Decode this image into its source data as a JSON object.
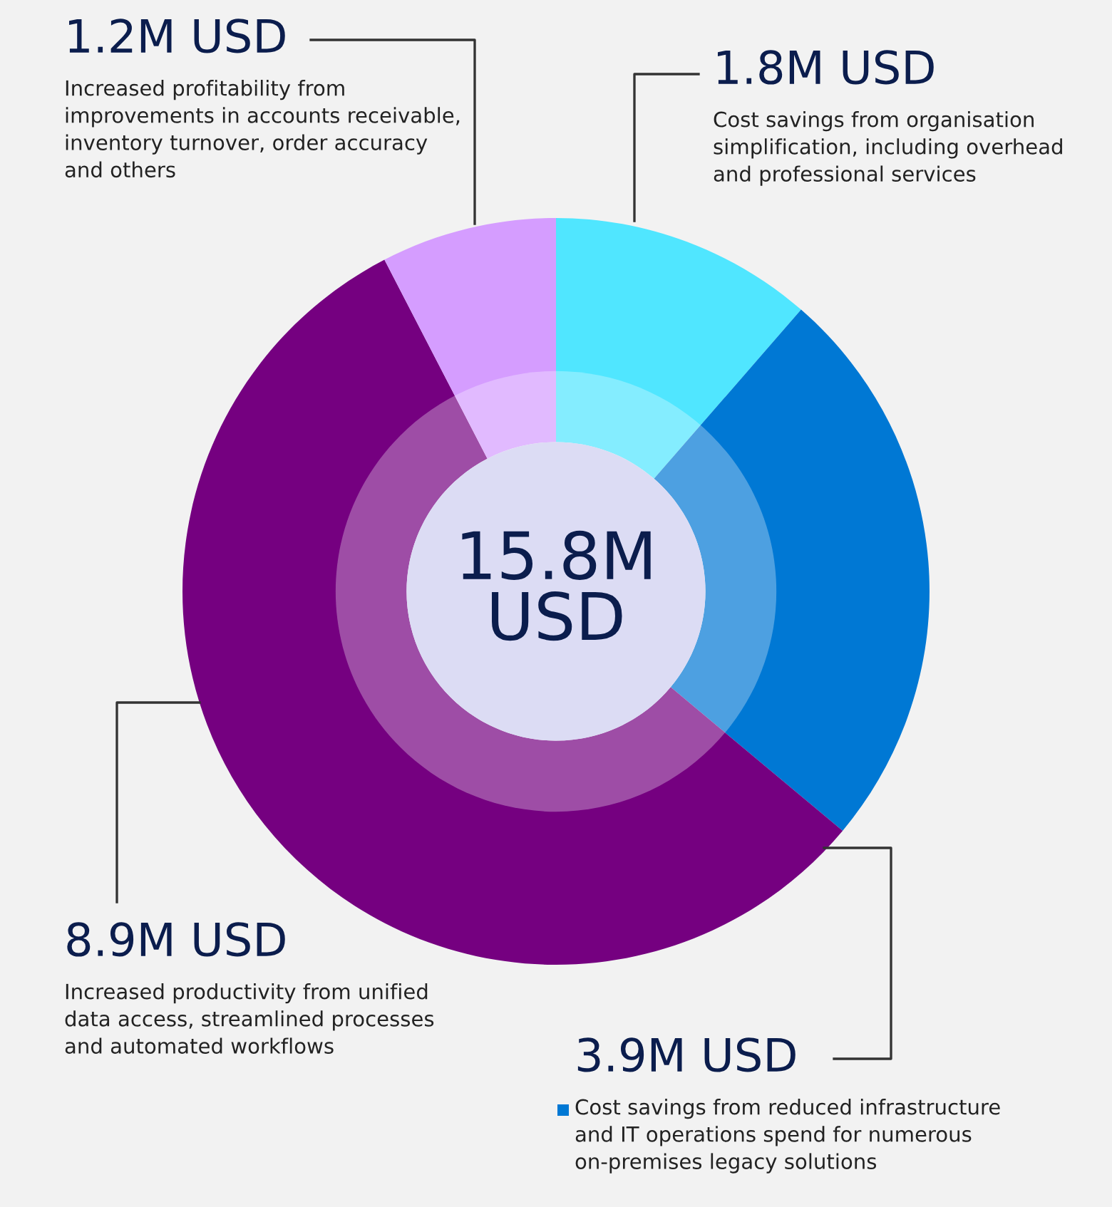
{
  "chart_data": {
    "type": "donut",
    "categories": [
      "Cost savings from organisation\nsimplification, including overhead\nand professional services",
      "Cost savings from reduced infrastructure\nand IT operations spend for numerous\non-premises legacy solutions",
      "Increased productivity from unified\ndata access, streamlined processes\nand automated workflows",
      "Increased profitability from\nimprovements in accounts receivable,\ninventory turnover, order accuracy\nand others"
    ],
    "values": [
      1.8,
      3.9,
      8.9,
      1.2
    ],
    "value_labels": [
      "1.8M USD",
      "3.9M USD",
      "8.9M USD",
      "1.2M USD"
    ],
    "colors": [
      "#50e6ff",
      "#0078d4",
      "#750080",
      "#d59dff"
    ],
    "annotations": [
      "15.8M\nUSD"
    ]
  }
}
